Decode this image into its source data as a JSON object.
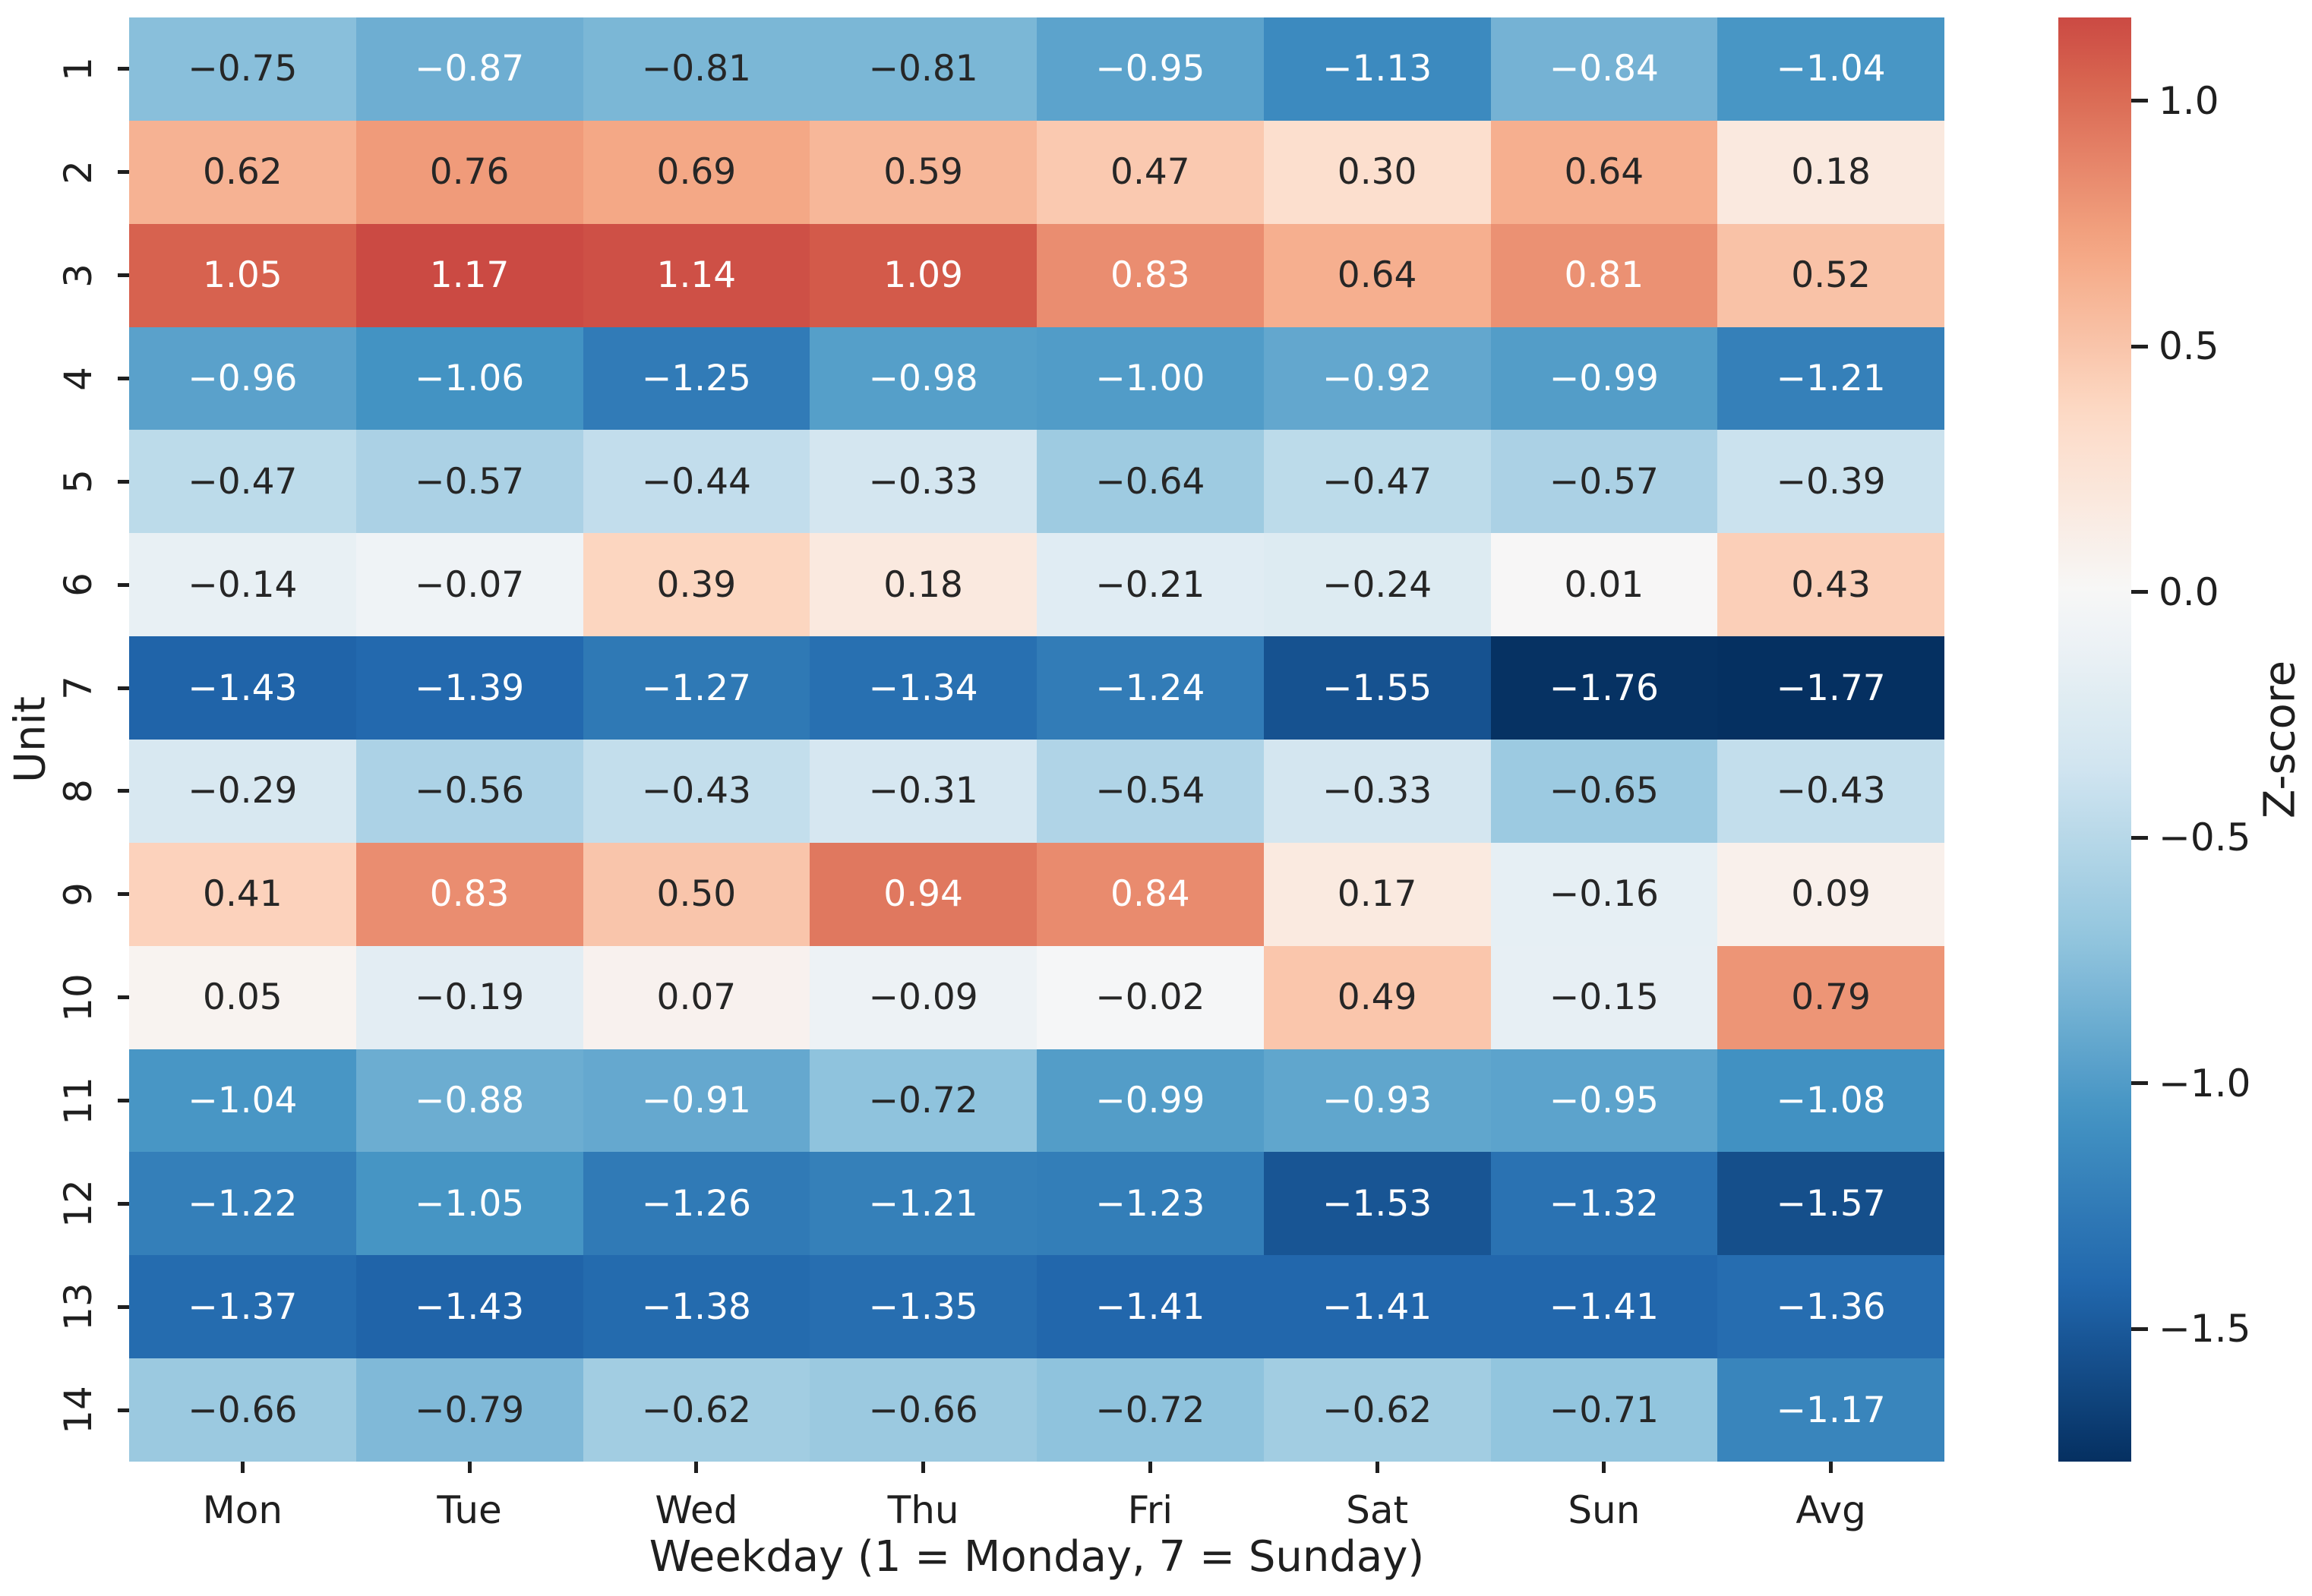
{
  "chart_data": {
    "type": "heatmap",
    "title": "",
    "xlabel": "Weekday (1 = Monday, 7 = Sunday)",
    "ylabel": "Unit",
    "colorbar_label": "Z-score",
    "colormap": "RdBu_r",
    "grid": false,
    "columns": [
      "Mon",
      "Tue",
      "Wed",
      "Thu",
      "Fri",
      "Sat",
      "Sun",
      "Avg"
    ],
    "rows": [
      "1",
      "2",
      "3",
      "4",
      "5",
      "6",
      "7",
      "8",
      "9",
      "10",
      "11",
      "12",
      "13",
      "14"
    ],
    "values": [
      [
        -0.75,
        -0.87,
        -0.81,
        -0.81,
        -0.95,
        -1.13,
        -0.84,
        -1.04
      ],
      [
        0.62,
        0.76,
        0.69,
        0.59,
        0.47,
        0.3,
        0.64,
        0.18
      ],
      [
        1.05,
        1.17,
        1.14,
        1.09,
        0.83,
        0.64,
        0.81,
        0.52
      ],
      [
        -0.96,
        -1.06,
        -1.25,
        -0.98,
        -1.0,
        -0.92,
        -0.99,
        -1.21
      ],
      [
        -0.47,
        -0.57,
        -0.44,
        -0.33,
        -0.64,
        -0.47,
        -0.57,
        -0.39
      ],
      [
        -0.14,
        -0.07,
        0.39,
        0.18,
        -0.21,
        -0.24,
        0.01,
        0.43
      ],
      [
        -1.43,
        -1.39,
        -1.27,
        -1.34,
        -1.24,
        -1.55,
        -1.76,
        -1.77
      ],
      [
        -0.29,
        -0.56,
        -0.43,
        -0.31,
        -0.54,
        -0.33,
        -0.65,
        -0.43
      ],
      [
        0.41,
        0.83,
        0.5,
        0.94,
        0.84,
        0.17,
        -0.16,
        0.09
      ],
      [
        0.05,
        -0.19,
        0.07,
        -0.09,
        -0.02,
        0.49,
        -0.15,
        0.79
      ],
      [
        -1.04,
        -0.88,
        -0.91,
        -0.72,
        -0.99,
        -0.93,
        -0.95,
        -1.08
      ],
      [
        -1.22,
        -1.05,
        -1.26,
        -1.21,
        -1.23,
        -1.53,
        -1.32,
        -1.57
      ],
      [
        -1.37,
        -1.43,
        -1.38,
        -1.35,
        -1.41,
        -1.41,
        -1.41,
        -1.36
      ],
      [
        -0.66,
        -0.79,
        -0.62,
        -0.66,
        -0.72,
        -0.62,
        -0.71,
        -1.17
      ]
    ],
    "vmin": -1.77,
    "vmax": 1.17,
    "center": 0,
    "value_format": "2-decimals",
    "colorbar_ticks": [
      {
        "value": 1.0,
        "label": "1.0"
      },
      {
        "value": 0.5,
        "label": "0.5"
      },
      {
        "value": 0.0,
        "label": "0.0"
      },
      {
        "value": -0.5,
        "label": "−0.5"
      },
      {
        "value": -1.0,
        "label": "−1.0"
      },
      {
        "value": -1.5,
        "label": "−1.5"
      }
    ],
    "annotation_dark_text_color": "#262626",
    "annotation_light_text_color": "#ffffff"
  }
}
